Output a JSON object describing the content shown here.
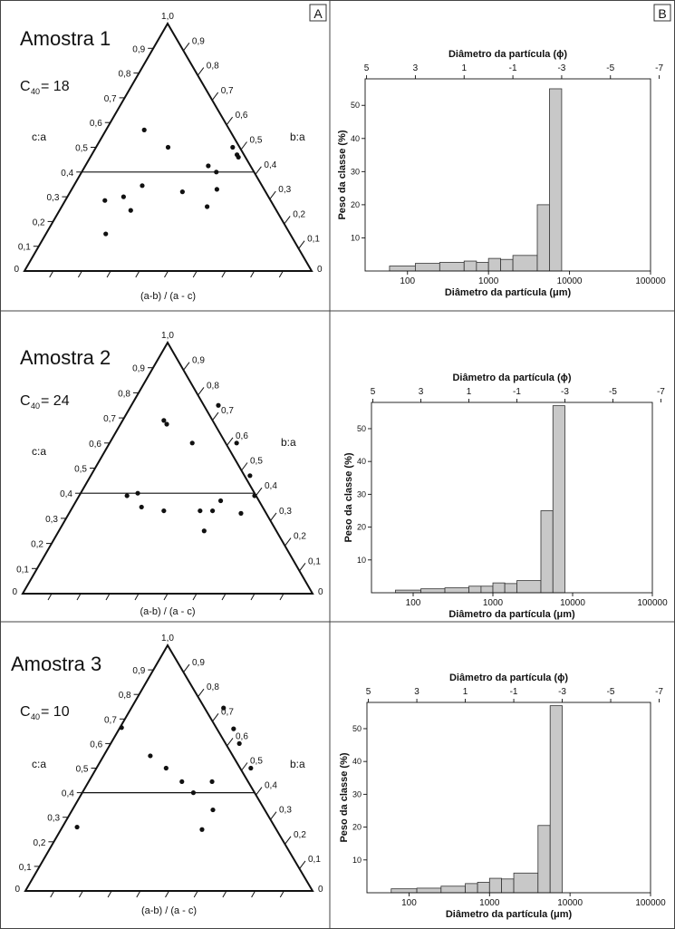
{
  "panel_labels": {
    "a": "A",
    "b": "B"
  },
  "colors": {
    "bar_fill": "#c8c8c8",
    "line": "#111111",
    "border": "#444444"
  },
  "chart_data": [
    {
      "type": "ternary",
      "title": "Amostra 1",
      "c40_label": "C",
      "c40_sub": "40",
      "c40_value": "= 18",
      "left_axis_label": "c:a",
      "right_axis_label": "b:a",
      "bottom_axis_label": "(a-b) / (a - c)",
      "apex_label": "1,0",
      "left_ticks": [
        "0,1",
        "0,2",
        "0,3",
        "0,4",
        "0,5",
        "0,6",
        "0,7",
        "0,8",
        "0,9"
      ],
      "right_ticks": [
        "0,9",
        "0,8",
        "0,7",
        "0,6",
        "0,5",
        "0,4",
        "0,3",
        "0,2",
        "0,1"
      ],
      "left_zero": "0",
      "right_zero": "0",
      "c40_line": 0.4,
      "points": [
        {
          "x": 0.5,
          "y": 0.5
        },
        {
          "x": 0.417,
          "y": 0.57
        },
        {
          "x": 0.283,
          "y": 0.15
        },
        {
          "x": 0.28,
          "y": 0.285
        },
        {
          "x": 0.345,
          "y": 0.3
        },
        {
          "x": 0.37,
          "y": 0.245
        },
        {
          "x": 0.41,
          "y": 0.345
        },
        {
          "x": 0.55,
          "y": 0.32
        },
        {
          "x": 0.64,
          "y": 0.425
        },
        {
          "x": 0.668,
          "y": 0.4
        },
        {
          "x": 0.67,
          "y": 0.33
        },
        {
          "x": 0.636,
          "y": 0.26
        },
        {
          "x": 0.725,
          "y": 0.5
        },
        {
          "x": 0.74,
          "y": 0.47
        },
        {
          "x": 0.745,
          "y": 0.46
        }
      ]
    },
    {
      "type": "bar",
      "xlabel": "Diâmetro da partícula (μm)",
      "x2label": "Diâmetro da partícula (ϕ)",
      "ylabel": "Peso da classe (%)",
      "x_ticks": [
        "100",
        "1000",
        "10000",
        "100000"
      ],
      "x2_ticks": [
        "5",
        "3",
        "1",
        "-1",
        "-3",
        "-5",
        "-7"
      ],
      "y_ticks": [
        "10",
        "20",
        "30",
        "40",
        "50"
      ],
      "xlim": [
        30,
        100000
      ],
      "ylim": [
        0,
        58
      ],
      "bins": [
        {
          "from": 60,
          "to": 125,
          "value": 1.5
        },
        {
          "from": 125,
          "to": 250,
          "value": 2.3
        },
        {
          "from": 250,
          "to": 500,
          "value": 2.6
        },
        {
          "from": 500,
          "to": 710,
          "value": 3.0
        },
        {
          "from": 710,
          "to": 1000,
          "value": 2.6
        },
        {
          "from": 1000,
          "to": 1410,
          "value": 3.8
        },
        {
          "from": 1410,
          "to": 2000,
          "value": 3.5
        },
        {
          "from": 2000,
          "to": 4000,
          "value": 4.7
        },
        {
          "from": 4000,
          "to": 5660,
          "value": 20.0
        },
        {
          "from": 5660,
          "to": 8000,
          "value": 55.0
        }
      ]
    },
    {
      "type": "ternary",
      "title": "Amostra 2",
      "c40_label": "C",
      "c40_sub": "40",
      "c40_value": "= 24",
      "left_axis_label": "c:a",
      "right_axis_label": "b:a",
      "bottom_axis_label": "(a-b) / (a - c)",
      "apex_label": "1,0",
      "left_ticks": [
        "0,1",
        "0,2",
        "0,3",
        "0,4",
        "0,5",
        "0,6",
        "0,7",
        "0,8",
        "0,9"
      ],
      "right_ticks": [
        "0,9",
        "0,8",
        "0,7",
        "0,6",
        "0,5",
        "0,4",
        "0,3",
        "0,2",
        "0,1"
      ],
      "left_zero": "0",
      "right_zero": "0",
      "c40_line": 0.4,
      "points": [
        {
          "x": 0.487,
          "y": 0.69
        },
        {
          "x": 0.497,
          "y": 0.675
        },
        {
          "x": 0.585,
          "y": 0.6
        },
        {
          "x": 0.675,
          "y": 0.75
        },
        {
          "x": 0.738,
          "y": 0.6
        },
        {
          "x": 0.784,
          "y": 0.47
        },
        {
          "x": 0.8,
          "y": 0.39
        },
        {
          "x": 0.36,
          "y": 0.39
        },
        {
          "x": 0.397,
          "y": 0.4
        },
        {
          "x": 0.41,
          "y": 0.345
        },
        {
          "x": 0.487,
          "y": 0.33
        },
        {
          "x": 0.612,
          "y": 0.33
        },
        {
          "x": 0.655,
          "y": 0.33
        },
        {
          "x": 0.683,
          "y": 0.37
        },
        {
          "x": 0.753,
          "y": 0.32
        },
        {
          "x": 0.626,
          "y": 0.25
        }
      ]
    },
    {
      "type": "bar",
      "xlabel": "Diâmetro da partícula (μm)",
      "x2label": "Diâmetro da partícula (ϕ)",
      "ylabel": "Peso da classe (%)",
      "x_ticks": [
        "100",
        "1000",
        "10000",
        "100000"
      ],
      "x2_ticks": [
        "5",
        "3",
        "1",
        "-1",
        "-3",
        "-5",
        "-7"
      ],
      "y_ticks": [
        "10",
        "20",
        "30",
        "40",
        "50"
      ],
      "xlim": [
        30,
        100000
      ],
      "ylim": [
        0,
        58
      ],
      "bins": [
        {
          "from": 60,
          "to": 125,
          "value": 0.8
        },
        {
          "from": 125,
          "to": 250,
          "value": 1.2
        },
        {
          "from": 250,
          "to": 500,
          "value": 1.5
        },
        {
          "from": 500,
          "to": 710,
          "value": 2.0
        },
        {
          "from": 710,
          "to": 1000,
          "value": 2.0
        },
        {
          "from": 1000,
          "to": 1410,
          "value": 3.0
        },
        {
          "from": 1410,
          "to": 2000,
          "value": 2.8
        },
        {
          "from": 2000,
          "to": 4000,
          "value": 3.7
        },
        {
          "from": 4000,
          "to": 5660,
          "value": 25.0
        },
        {
          "from": 5660,
          "to": 8000,
          "value": 57.0
        }
      ]
    },
    {
      "type": "ternary",
      "title": "Amostra 3",
      "c40_label": "C",
      "c40_sub": "40",
      "c40_value": "= 10",
      "left_axis_label": "c:a",
      "right_axis_label": "b:a",
      "bottom_axis_label": "(a-b) / (a - c)",
      "apex_label": "1,0",
      "left_ticks": [
        "0,1",
        "0,2",
        "0,3",
        "0,4",
        "0,5",
        "0,6",
        "0,7",
        "0,8",
        "0,9"
      ],
      "right_ticks": [
        "0,9",
        "0,8",
        "0,7",
        "0,6",
        "0,5",
        "0,4",
        "0,3",
        "0,2",
        "0,1"
      ],
      "left_zero": "0",
      "right_zero": "0",
      "c40_line": 0.4,
      "points": [
        {
          "x": 0.335,
          "y": 0.665
        },
        {
          "x": 0.435,
          "y": 0.55
        },
        {
          "x": 0.49,
          "y": 0.5
        },
        {
          "x": 0.545,
          "y": 0.445
        },
        {
          "x": 0.585,
          "y": 0.4
        },
        {
          "x": 0.65,
          "y": 0.445
        },
        {
          "x": 0.653,
          "y": 0.33
        },
        {
          "x": 0.69,
          "y": 0.745
        },
        {
          "x": 0.725,
          "y": 0.66
        },
        {
          "x": 0.745,
          "y": 0.6
        },
        {
          "x": 0.785,
          "y": 0.5
        },
        {
          "x": 0.18,
          "y": 0.26
        },
        {
          "x": 0.615,
          "y": 0.25
        }
      ]
    },
    {
      "type": "bar",
      "xlabel": "Diâmetro da partícula (μm)",
      "x2label": "Diâmetro da partícula (ϕ)",
      "ylabel": "Peso da classe (%)",
      "x_ticks": [
        "100",
        "1000",
        "10000",
        "100000"
      ],
      "x2_ticks": [
        "5",
        "3",
        "1",
        "-1",
        "-3",
        "-5",
        "-7"
      ],
      "y_ticks": [
        "10",
        "20",
        "30",
        "40",
        "50"
      ],
      "xlim": [
        30,
        100000
      ],
      "ylim": [
        0,
        58
      ],
      "bins": [
        {
          "from": 60,
          "to": 125,
          "value": 1.2
        },
        {
          "from": 125,
          "to": 250,
          "value": 1.4
        },
        {
          "from": 250,
          "to": 500,
          "value": 2.0
        },
        {
          "from": 500,
          "to": 710,
          "value": 2.8
        },
        {
          "from": 710,
          "to": 1000,
          "value": 3.2
        },
        {
          "from": 1000,
          "to": 1410,
          "value": 4.4
        },
        {
          "from": 1410,
          "to": 2000,
          "value": 4.2
        },
        {
          "from": 2000,
          "to": 4000,
          "value": 6.0
        },
        {
          "from": 4000,
          "to": 5660,
          "value": 20.5
        },
        {
          "from": 5660,
          "to": 8000,
          "value": 57.0
        }
      ]
    }
  ]
}
